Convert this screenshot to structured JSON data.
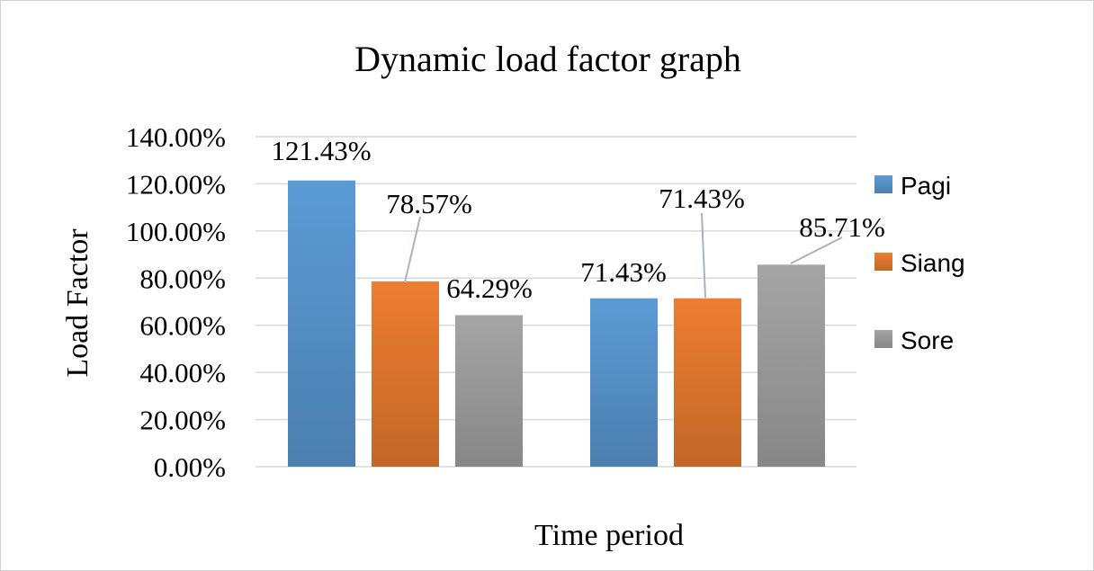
{
  "chart_data": {
    "type": "bar",
    "title": "Dynamic load factor graph",
    "xlabel": "Time period",
    "ylabel": "Load Factor",
    "ylim": [
      0,
      1.4
    ],
    "yticks": [
      "0.00%",
      "20.00%",
      "40.00%",
      "60.00%",
      "80.00%",
      "100.00%",
      "120.00%",
      "140.00%"
    ],
    "grid": true,
    "legend_position": "right",
    "groups": 2,
    "series": [
      {
        "name": "Pagi",
        "color": "#5b9bd5",
        "values": [
          1.2143,
          0.7143
        ],
        "labels": [
          "121.43%",
          "71.43%"
        ]
      },
      {
        "name": "Siang",
        "color": "#ed7d31",
        "values": [
          0.7857,
          0.7143
        ],
        "labels": [
          "78.57%",
          "71.43%"
        ]
      },
      {
        "name": "Sore",
        "color": "#a5a5a5",
        "values": [
          0.6429,
          0.8571
        ],
        "labels": [
          "64.29%",
          "85.71%"
        ]
      }
    ]
  }
}
